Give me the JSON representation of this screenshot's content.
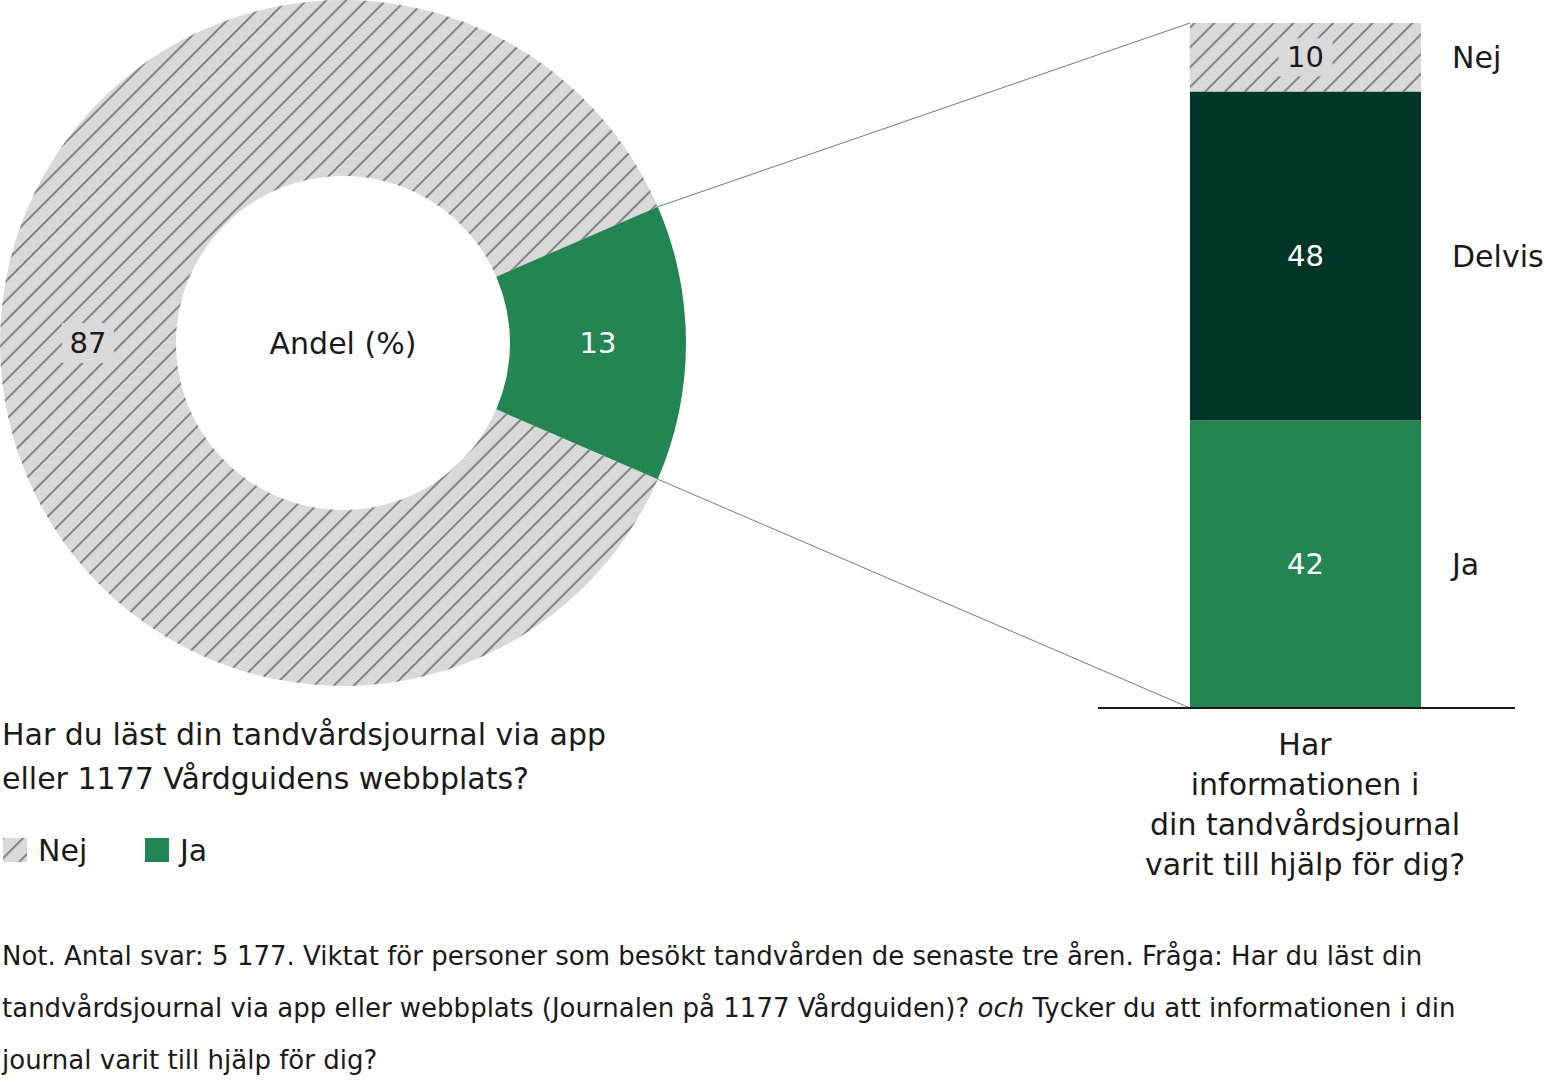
{
  "chart_data": [
    {
      "type": "donut",
      "title": [
        "Har du läst din tandvårdsjournal via app",
        "eller 1177 Vårdguidens webbplats?"
      ],
      "annotation": "Andel (%)",
      "categories": [
        "Nej",
        "Ja"
      ],
      "values": [
        87,
        13
      ],
      "colors": [
        "#d9d9d9",
        "#238551"
      ],
      "data_labels": true,
      "legend": "bottom left"
    },
    {
      "type": "bar",
      "stacked": true,
      "data_labels": true,
      "tick_labels": false,
      "xlabel": [
        "Har",
        "informationen i",
        "din tandvårdsjournal",
        "varit till hjälp för dig?"
      ],
      "categories": [
        null
      ],
      "ylim": [
        0,
        100
      ],
      "series": [
        {
          "name": "Ja",
          "color": "#238551",
          "values": [
            42
          ]
        },
        {
          "name": "Delvis",
          "color": "#003527",
          "values": [
            48
          ]
        },
        {
          "name": "Nej",
          "color": "#d9d9d9",
          "values": [
            10
          ]
        }
      ]
    }
  ],
  "note": [
    "Not. Antal svar: 5 177. Viktat för personer som besökt tandvården de senaste tre åren. Fråga: Har du läst din tandvårdsjournal via app eller webbplats (Journalen på 1177 Vårdguiden)?",
    "och",
    "Tycker du att informationen i din journal varit till hjälp för dig?"
  ]
}
